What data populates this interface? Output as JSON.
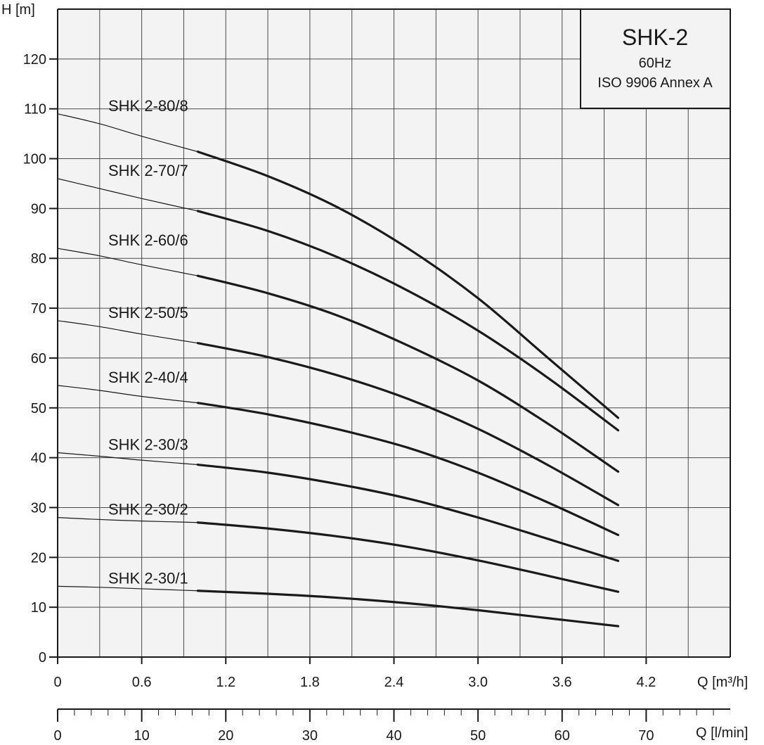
{
  "chart_data": {
    "type": "line",
    "title_box": {
      "title": "SHK-2",
      "frequency": "60Hz",
      "standard": "ISO 9906 Annex A"
    },
    "ylabel": "H [m]",
    "xlabel": "Q [m³/h]",
    "x2label": "Q [l/min]",
    "xlim": [
      0,
      4.8
    ],
    "ylim": [
      0,
      130
    ],
    "x_ticks": [
      0,
      0.6,
      1.2,
      1.8,
      2.4,
      3.0,
      3.6,
      4.2
    ],
    "x_tick_labels": [
      "0",
      "0.6",
      "1.2",
      "1.8",
      "2.4",
      "3.0",
      "3.6",
      "4.2"
    ],
    "y_ticks": [
      0,
      10,
      20,
      30,
      40,
      50,
      60,
      70,
      80,
      90,
      100,
      110,
      120
    ],
    "y_tick_labels": [
      "0",
      "10",
      "20",
      "30",
      "40",
      "50",
      "60",
      "70",
      "80",
      "90",
      "100",
      "110",
      "120"
    ],
    "x2_ticks": [
      0,
      10,
      20,
      30,
      40,
      50,
      60,
      70
    ],
    "x2_tick_labels": [
      "0",
      "10",
      "20",
      "30",
      "40",
      "50",
      "60",
      "70"
    ],
    "grid": true,
    "series": [
      {
        "name": "SHK 2-80/8",
        "x": [
          0,
          0.3,
          0.6,
          1.0,
          1.5,
          2.0,
          2.5,
          3.0,
          3.5,
          4.0
        ],
        "y": [
          109,
          107,
          104.5,
          101.4,
          96.5,
          90.2,
          82,
          72,
          60,
          48
        ]
      },
      {
        "name": "SHK 2-70/7",
        "x": [
          0,
          0.3,
          0.6,
          1.0,
          1.5,
          2.0,
          2.5,
          3.0,
          3.5,
          4.0
        ],
        "y": [
          96,
          94,
          92,
          89.5,
          85.5,
          80.2,
          73.5,
          65.5,
          56,
          45.5
        ]
      },
      {
        "name": "SHK 2-60/6",
        "x": [
          0,
          0.3,
          0.6,
          1.0,
          1.5,
          2.0,
          2.5,
          3.0,
          3.5,
          4.0
        ],
        "y": [
          82,
          80.5,
          78.7,
          76.5,
          73,
          68.5,
          62.5,
          55.5,
          46.8,
          37.2
        ]
      },
      {
        "name": "SHK 2-50/5",
        "x": [
          0,
          0.3,
          0.6,
          1.0,
          1.5,
          2.0,
          2.5,
          3.0,
          3.5,
          4.0
        ],
        "y": [
          67.5,
          66.3,
          64.8,
          63,
          60.2,
          56.5,
          51.8,
          45.8,
          38.5,
          30.5
        ]
      },
      {
        "name": "SHK 2-40/4",
        "x": [
          0,
          0.3,
          0.6,
          1.0,
          1.5,
          2.0,
          2.5,
          3.0,
          3.5,
          4.0
        ],
        "y": [
          54.5,
          53.5,
          52.3,
          51,
          48.7,
          45.7,
          42,
          37,
          31,
          24.5
        ]
      },
      {
        "name": "SHK 2-30/3",
        "x": [
          0,
          0.3,
          0.6,
          1.0,
          1.5,
          2.0,
          2.5,
          3.0,
          3.5,
          4.0
        ],
        "y": [
          41,
          40.3,
          39.5,
          38.6,
          37,
          34.7,
          31.8,
          28,
          23.7,
          19.3
        ]
      },
      {
        "name": "SHK 2-30/2",
        "x": [
          0,
          0.3,
          0.6,
          1.0,
          1.5,
          2.0,
          2.5,
          3.0,
          3.5,
          4.0
        ],
        "y": [
          28,
          27.6,
          27.3,
          27,
          25.8,
          24.2,
          22.1,
          19.4,
          16.3,
          13.1
        ]
      },
      {
        "name": "SHK 2-30/1",
        "x": [
          0,
          0.3,
          0.6,
          1.0,
          1.5,
          2.0,
          2.5,
          3.0,
          3.5,
          4.0
        ],
        "y": [
          14.2,
          14,
          13.7,
          13.3,
          12.7,
          11.9,
          10.8,
          9.4,
          7.8,
          6.2
        ]
      }
    ],
    "operating_range_start_x": 1.0,
    "colors": {
      "plot_bg": "#f3f3f3",
      "grid": "#4a4a4a",
      "line": "#1a1a1a"
    }
  }
}
